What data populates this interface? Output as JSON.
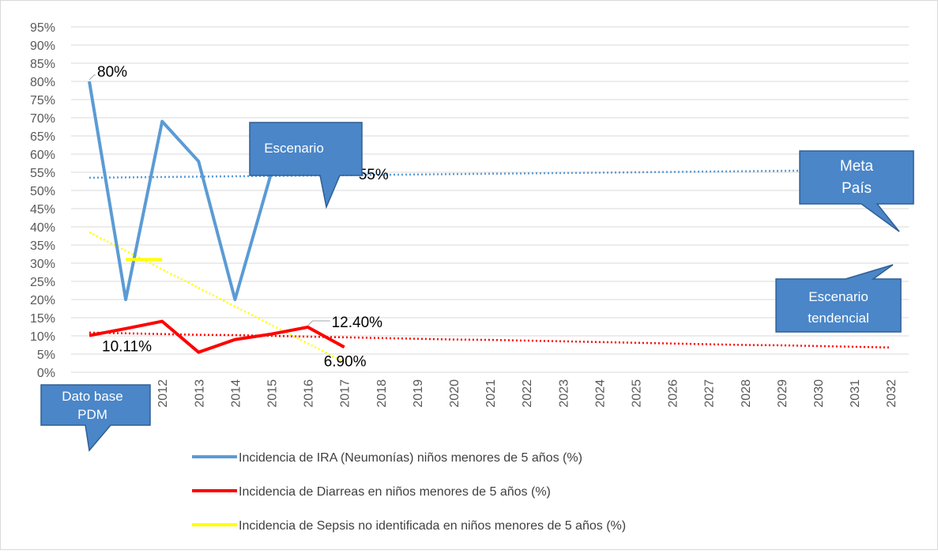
{
  "chart_data": {
    "type": "line",
    "categories": [
      null,
      null,
      "2012",
      "2013",
      "2014",
      "2015",
      "2016",
      "2017",
      "2018",
      "2019",
      "2020",
      "2021",
      "2022",
      "2023",
      "2024",
      "2025",
      "2026",
      "2027",
      "2028",
      "2029",
      "2030",
      "2031",
      "2032"
    ],
    "series": [
      {
        "name": "Incidencia de IRA (Neumonías) niños menores de 5 años (%)",
        "color": "#5b9bd5",
        "values": [
          80,
          20,
          69,
          58,
          20,
          55,
          55,
          55,
          null,
          null,
          null,
          null,
          null,
          null,
          null,
          null,
          null,
          null,
          null,
          null,
          null,
          null,
          null
        ],
        "value_labels": [
          "80%",
          null,
          null,
          null,
          null,
          null,
          null,
          "55%",
          null,
          null,
          null,
          null,
          null,
          null,
          null,
          null,
          null,
          null,
          null,
          null,
          null,
          null,
          null
        ],
        "trend": [
          53.5,
          53.6,
          53.7,
          53.8,
          53.9,
          54.0,
          54.1,
          54.2,
          54.3,
          54.4,
          54.5,
          54.6,
          54.7,
          54.8,
          54.9,
          55.0,
          55.1,
          55.2,
          55.3,
          55.4,
          55.5,
          55.6,
          55.7
        ]
      },
      {
        "name": "Incidencia de Diarreas en niños menores de 5 años (%)",
        "color": "#ff0000",
        "values": [
          10.11,
          12,
          14,
          5.5,
          9,
          10.5,
          12.4,
          6.9,
          null,
          null,
          null,
          null,
          null,
          null,
          null,
          null,
          null,
          null,
          null,
          null,
          null,
          null,
          null
        ],
        "value_labels": [
          "10.11%",
          null,
          null,
          null,
          null,
          null,
          "12.40%",
          "6.90%",
          null,
          null,
          null,
          null,
          null,
          null,
          null,
          null,
          null,
          null,
          null,
          null,
          null,
          null,
          null
        ],
        "trend": [
          10.9,
          10.7,
          10.5,
          10.3,
          10.2,
          10.0,
          9.8,
          9.6,
          9.4,
          9.2,
          9.0,
          8.9,
          8.7,
          8.5,
          8.3,
          8.1,
          7.9,
          7.7,
          7.5,
          7.4,
          7.2,
          7.0,
          6.8
        ]
      },
      {
        "name": "Incidencia de Sepsis no identificada en niños menores de 5 años (%)",
        "color": "#ffff00",
        "values": [
          null,
          31,
          31,
          null,
          null,
          null,
          null,
          null,
          null,
          null,
          null,
          null,
          null,
          null,
          null,
          null,
          null,
          null,
          null,
          null,
          null,
          null,
          null
        ],
        "trend": [
          38.5,
          33.4,
          28.3,
          23.2,
          18.1,
          13.0,
          7.9,
          2.8,
          null,
          null,
          null,
          null,
          null,
          null,
          null,
          null,
          null,
          null,
          null,
          null,
          null,
          null,
          null
        ]
      }
    ],
    "ylim": [
      0,
      95
    ],
    "yticks": [
      {
        "value": 0,
        "label": "0%"
      },
      {
        "value": 5,
        "label": "5%"
      },
      {
        "value": 10,
        "label": "10%"
      },
      {
        "value": 15,
        "label": "15%"
      },
      {
        "value": 20,
        "label": "20%"
      },
      {
        "value": 25,
        "label": "25%"
      },
      {
        "value": 30,
        "label": "30%"
      },
      {
        "value": 35,
        "label": "35%"
      },
      {
        "value": 40,
        "label": "40%"
      },
      {
        "value": 45,
        "label": "45%"
      },
      {
        "value": 50,
        "label": "50%"
      },
      {
        "value": 55,
        "label": "55%"
      },
      {
        "value": 60,
        "label": "60%"
      },
      {
        "value": 65,
        "label": "65%"
      },
      {
        "value": 70,
        "label": "70%"
      },
      {
        "value": 75,
        "label": "75%"
      },
      {
        "value": 80,
        "label": "80%"
      },
      {
        "value": 85,
        "label": "85%"
      },
      {
        "value": 90,
        "label": "90%"
      },
      {
        "value": 95,
        "label": "95%"
      }
    ],
    "grid": true,
    "annotations": [
      "Escenario",
      "Meta",
      "País",
      "Escenario",
      "tendencial",
      "Dato base",
      "PDM"
    ]
  }
}
